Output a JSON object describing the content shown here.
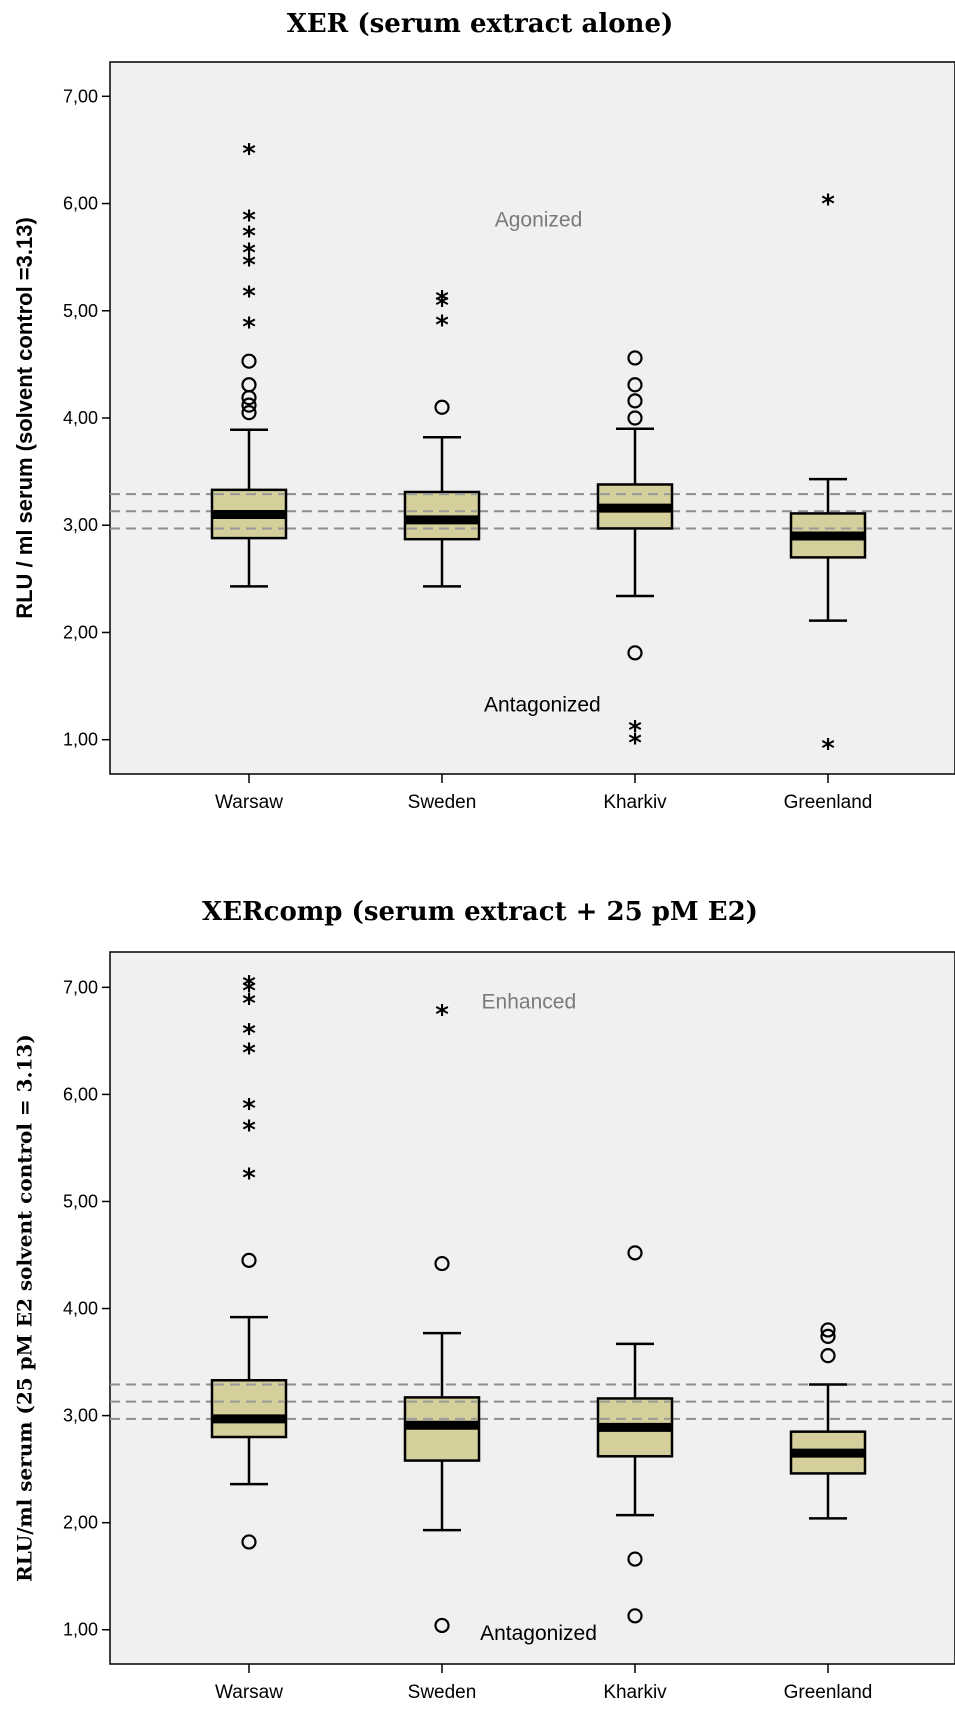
{
  "chart_data": [
    {
      "type": "box",
      "title": "XER (serum extract alone)",
      "ylabel": "RLU / ml serum (solvent control =3.13)",
      "ylim": [
        0.68,
        7.32
      ],
      "yticks": [
        1,
        2,
        3,
        4,
        5,
        6,
        7
      ],
      "ytick_labels": [
        "1,00",
        "2,00",
        "3,00",
        "4,00",
        "5,00",
        "6,00",
        "7,00"
      ],
      "reference_lines": [
        2.97,
        3.13,
        3.29
      ],
      "categories": [
        "Warsaw",
        "Sweden",
        "Kharkiv",
        "Greenland"
      ],
      "boxes": [
        {
          "category": "Warsaw",
          "whisker_low": 2.43,
          "q1": 2.88,
          "median": 3.1,
          "q3": 3.33,
          "whisker_high": 3.89,
          "outliers": [
            4.05,
            4.12,
            4.19,
            4.31,
            4.53
          ],
          "extremes": [
            4.88,
            5.17,
            5.46,
            5.57,
            5.73,
            5.88,
            6.5
          ]
        },
        {
          "category": "Sweden",
          "whisker_low": 2.43,
          "q1": 2.87,
          "median": 3.05,
          "q3": 3.31,
          "whisker_high": 3.82,
          "outliers": [
            4.1
          ],
          "extremes": [
            4.9,
            5.08,
            5.13
          ]
        },
        {
          "category": "Kharkiv",
          "whisker_low": 2.34,
          "q1": 2.97,
          "median": 3.16,
          "q3": 3.38,
          "whisker_high": 3.9,
          "outliers": [
            1.81,
            4.0,
            4.16,
            4.31,
            4.56
          ],
          "extremes": [
            1.0,
            1.12
          ]
        },
        {
          "category": "Greenland",
          "whisker_low": 2.11,
          "q1": 2.7,
          "median": 2.9,
          "q3": 3.11,
          "whisker_high": 3.43,
          "outliers": [],
          "extremes": [
            0.95,
            6.03
          ]
        }
      ],
      "annotations": [
        {
          "text": "Agonized",
          "x": 2.5,
          "y": 5.85,
          "color": "#7a7a7a"
        },
        {
          "text": "Antagonized",
          "x": 2.52,
          "y": 1.33,
          "color": "#000000"
        }
      ]
    },
    {
      "type": "box",
      "title": "XERcomp (serum extract + 25 pM E2)",
      "ylabel": "RLU/ml serum (25 pM E2 solvent control = 3.13)",
      "ylim": [
        0.68,
        7.33
      ],
      "yticks": [
        1,
        2,
        3,
        4,
        5,
        6,
        7
      ],
      "ytick_labels": [
        "1,00",
        "2,00",
        "3,00",
        "4,00",
        "5,00",
        "6,00",
        "7,00"
      ],
      "reference_lines": [
        2.97,
        3.13,
        3.29
      ],
      "categories": [
        "Warsaw",
        "Sweden",
        "Kharkiv",
        "Greenland"
      ],
      "boxes": [
        {
          "category": "Warsaw",
          "whisker_low": 2.36,
          "q1": 2.8,
          "median": 2.97,
          "q3": 3.33,
          "whisker_high": 3.92,
          "outliers": [
            1.82,
            4.45
          ],
          "extremes": [
            5.25,
            5.7,
            5.9,
            6.42,
            6.6,
            6.88,
            7.0,
            7.05
          ]
        },
        {
          "category": "Sweden",
          "whisker_low": 1.93,
          "q1": 2.58,
          "median": 2.91,
          "q3": 3.17,
          "whisker_high": 3.77,
          "outliers": [
            1.04,
            4.42
          ],
          "extremes": [
            6.78
          ]
        },
        {
          "category": "Kharkiv",
          "whisker_low": 2.07,
          "q1": 2.62,
          "median": 2.89,
          "q3": 3.16,
          "whisker_high": 3.67,
          "outliers": [
            1.13,
            1.66,
            4.52
          ],
          "extremes": []
        },
        {
          "category": "Greenland",
          "whisker_low": 2.04,
          "q1": 2.46,
          "median": 2.65,
          "q3": 2.85,
          "whisker_high": 3.29,
          "outliers": [
            3.56,
            3.74,
            3.8
          ],
          "extremes": []
        }
      ],
      "annotations": [
        {
          "text": "Enhanced",
          "x": 2.45,
          "y": 6.87,
          "color": "#7a7a7a"
        },
        {
          "text": "Antagonized",
          "x": 2.5,
          "y": 0.97,
          "color": "#000000"
        }
      ]
    }
  ]
}
